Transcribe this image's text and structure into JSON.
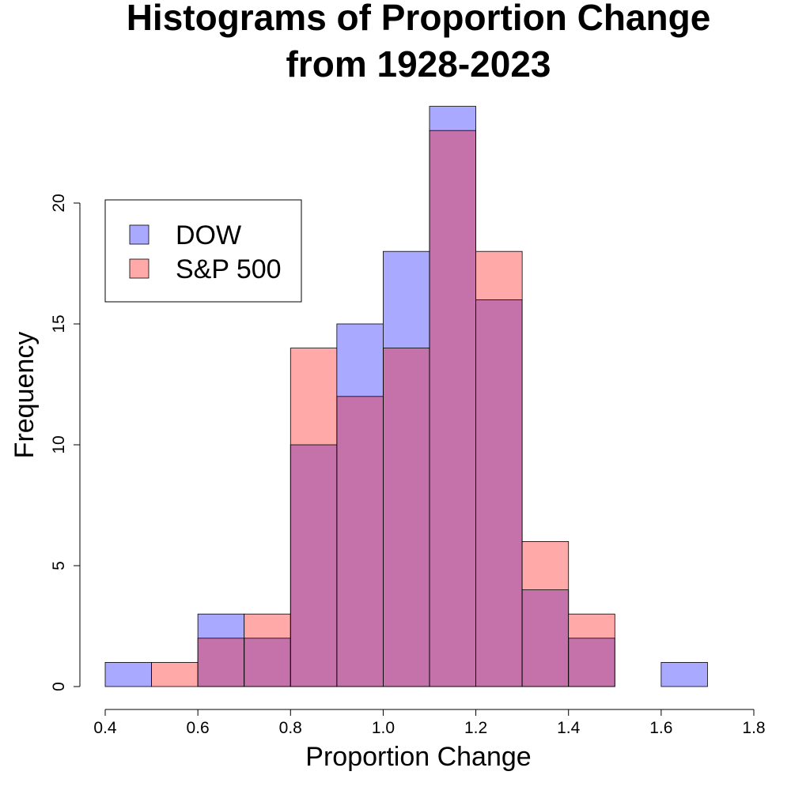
{
  "chart_data": {
    "type": "bar",
    "title_lines": [
      "Histograms of Proportion Change",
      "from 1928-2023"
    ],
    "xlabel": "Proportion Change",
    "ylabel": "Frequency",
    "xlim": [
      0.4,
      1.8
    ],
    "ylim": [
      0,
      24
    ],
    "x_ticks": [
      "0.4",
      "0.6",
      "0.8",
      "1.0",
      "1.2",
      "1.4",
      "1.6",
      "1.8"
    ],
    "y_ticks": [
      "0",
      "5",
      "10",
      "15",
      "20"
    ],
    "bins": [
      [
        0.4,
        0.5
      ],
      [
        0.5,
        0.6
      ],
      [
        0.6,
        0.7
      ],
      [
        0.7,
        0.8
      ],
      [
        0.8,
        0.9
      ],
      [
        0.9,
        1.0
      ],
      [
        1.0,
        1.1
      ],
      [
        1.1,
        1.2
      ],
      [
        1.2,
        1.3
      ],
      [
        1.3,
        1.4
      ],
      [
        1.4,
        1.5
      ],
      [
        1.5,
        1.6
      ],
      [
        1.6,
        1.7
      ]
    ],
    "series": [
      {
        "name": "DOW",
        "color": "#A9A9FF",
        "values": [
          1,
          0,
          3,
          2,
          10,
          15,
          18,
          24,
          16,
          4,
          2,
          0,
          1
        ]
      },
      {
        "name": "S&P 500",
        "color": "#FFA9A9",
        "values": [
          0,
          1,
          2,
          3,
          14,
          12,
          14,
          23,
          18,
          6,
          3,
          0,
          0
        ]
      }
    ],
    "overlap_color": "#C572AB",
    "legend_placement": "top-left",
    "grid": false
  }
}
